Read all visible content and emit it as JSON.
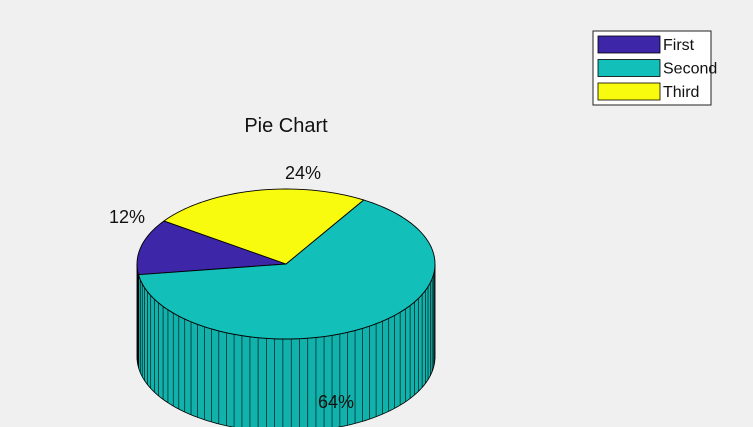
{
  "chart_data": {
    "type": "pie",
    "variant": "3d",
    "title": "Pie Chart",
    "categories": [
      "First",
      "Second",
      "Third"
    ],
    "values": [
      12,
      64,
      24
    ],
    "labels": [
      "12%",
      "64%",
      "24%"
    ],
    "colors": [
      "#3e26a8",
      "#13bfb9",
      "#f9fb0e"
    ],
    "legend_position": "top-right",
    "grid": false
  }
}
